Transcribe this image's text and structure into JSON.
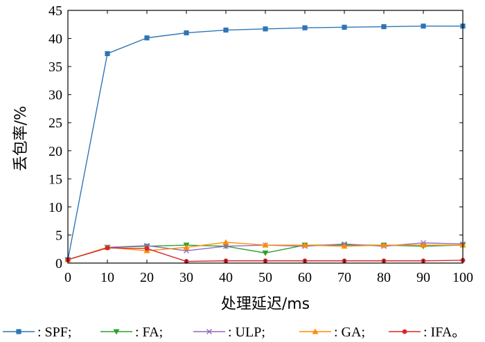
{
  "chart_data": {
    "type": "line",
    "xlabel": "处理延迟/ms",
    "ylabel": "丢包率/%",
    "xlim": [
      0,
      100
    ],
    "ylim": [
      0,
      45
    ],
    "xticks": [
      0,
      10,
      20,
      30,
      40,
      50,
      60,
      70,
      80,
      90,
      100
    ],
    "yticks": [
      0,
      5,
      10,
      15,
      20,
      25,
      30,
      35,
      40,
      45
    ],
    "grid": false,
    "legend_position": "bottom",
    "x": [
      0,
      10,
      20,
      30,
      40,
      50,
      60,
      70,
      80,
      90,
      100
    ],
    "series": [
      {
        "name": "SPF",
        "legend_text": ": SPF;",
        "color": "#2e75b6",
        "marker": "square",
        "values": [
          0.6,
          37.3,
          40.1,
          41.0,
          41.5,
          41.7,
          41.9,
          42.0,
          42.1,
          42.2,
          42.2
        ]
      },
      {
        "name": "FA",
        "legend_text": ": FA;",
        "color": "#2ca02c",
        "marker": "triangle-down",
        "values": [
          0.6,
          2.8,
          3.0,
          3.2,
          3.0,
          1.8,
          3.2,
          3.2,
          3.2,
          3.0,
          3.2
        ]
      },
      {
        "name": "ULP",
        "legend_text": ": ULP;",
        "color": "#9467bd",
        "marker": "x",
        "values": [
          0.6,
          2.8,
          3.1,
          2.2,
          3.0,
          3.2,
          3.0,
          3.4,
          3.0,
          3.6,
          3.4
        ]
      },
      {
        "name": "GA",
        "legend_text": ": GA;",
        "color": "#ff8c00",
        "marker": "triangle-up",
        "values": [
          0.6,
          2.8,
          2.2,
          2.8,
          3.7,
          3.2,
          3.2,
          3.0,
          3.2,
          3.2,
          3.2
        ]
      },
      {
        "name": "IFA",
        "legend_text": ": IFA。",
        "color": "#d62728",
        "marker": "circle",
        "values": [
          0.6,
          2.7,
          2.6,
          0.3,
          0.4,
          0.4,
          0.4,
          0.4,
          0.4,
          0.4,
          0.5
        ]
      }
    ]
  }
}
